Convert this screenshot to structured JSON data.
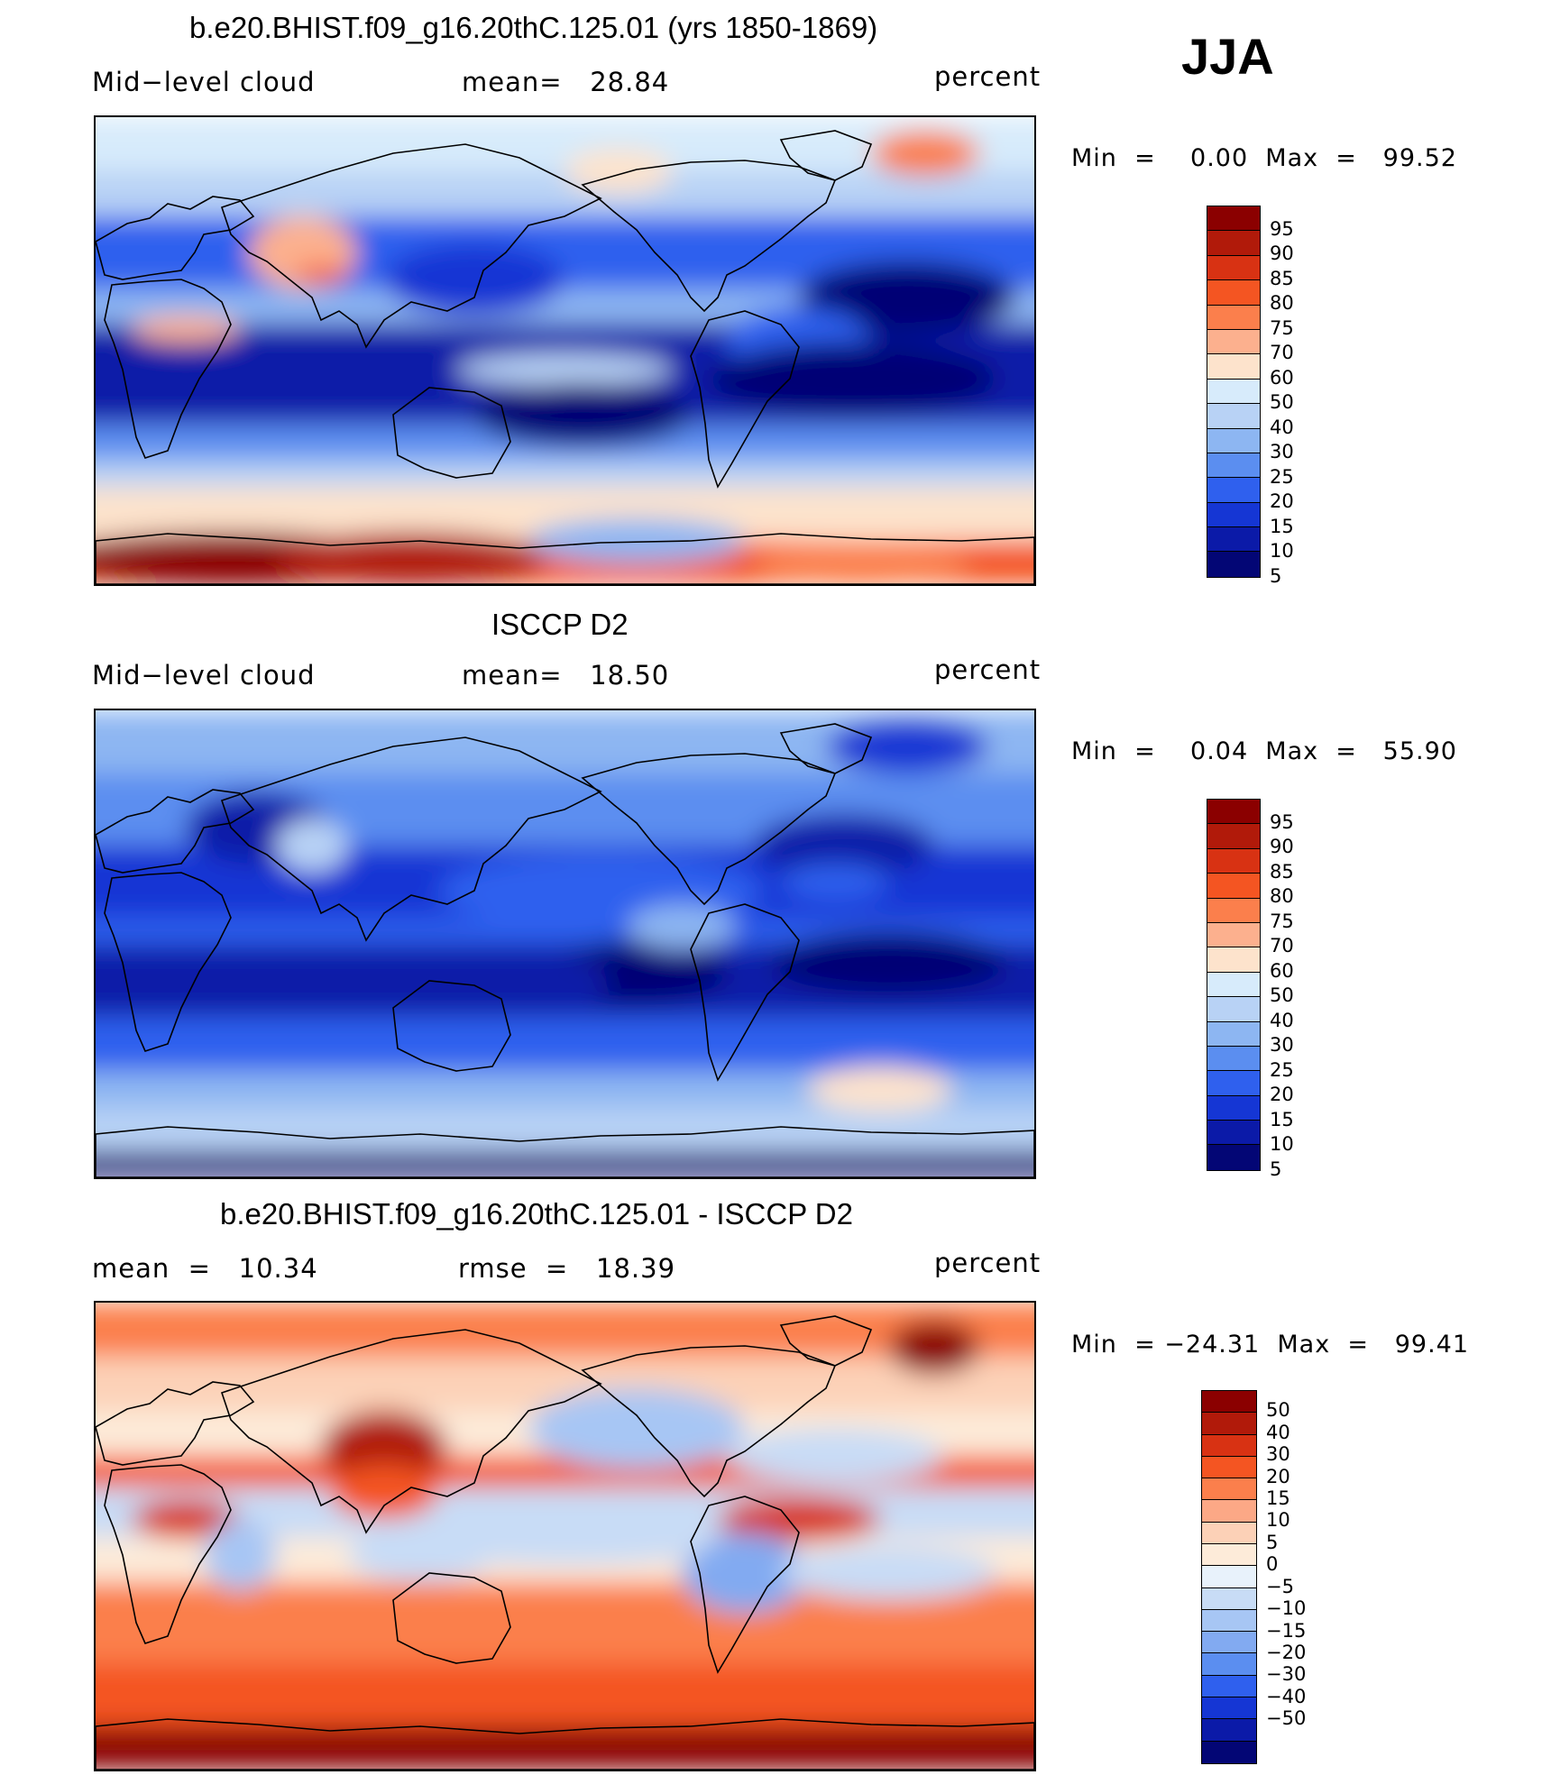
{
  "season": "JJA",
  "colors": {
    "abs_scale": [
      "#8b0000",
      "#b11a0a",
      "#d83213",
      "#f45522",
      "#fb7f4c",
      "#fcb08e",
      "#fde3cc",
      "#d7ebfb",
      "#b8d2f5",
      "#8db6f2",
      "#5b8ef0",
      "#2f60ee",
      "#1536d4",
      "#0b1aa8",
      "#030675"
    ],
    "diff_scale": [
      "#8b0000",
      "#b11a0a",
      "#d83213",
      "#f45522",
      "#fb7f4c",
      "#fca886",
      "#fcd1b7",
      "#fdebd9",
      "#e8f2fb",
      "#c8dcf6",
      "#a7c6f4",
      "#82aaf1",
      "#5b8ef0",
      "#2f60ee",
      "#1536d4",
      "#0b1aa8",
      "#030675"
    ]
  },
  "panels": [
    {
      "title": "b.e20.BHIST.f09_g16.20thC.125.01 (yrs 1850-1869)",
      "left_label": "Mid−level cloud",
      "mean_text": "mean=   28.84",
      "units": "percent",
      "min_max": "Min  =    0.00  Max  =   99.52",
      "colorbar_labels": [
        "95",
        "90",
        "85",
        "80",
        "75",
        "70",
        "60",
        "50",
        "40",
        "30",
        "25",
        "20",
        "15",
        "10",
        "5"
      ]
    },
    {
      "title": "ISCCP D2",
      "left_label": "Mid−level cloud",
      "mean_text": "mean=   18.50",
      "units": "percent",
      "min_max": "Min  =    0.04  Max  =   55.90",
      "colorbar_labels": [
        "95",
        "90",
        "85",
        "80",
        "75",
        "70",
        "60",
        "50",
        "40",
        "30",
        "25",
        "20",
        "15",
        "10",
        "5"
      ]
    },
    {
      "title": "b.e20.BHIST.f09_g16.20thC.125.01 - ISCCP D2",
      "left_label": "mean  =   10.34",
      "mean_text": "rmse  =   18.39",
      "units": "percent",
      "min_max": "Min  = −24.31  Max  =   99.41",
      "colorbar_labels": [
        "50",
        "40",
        "30",
        "20",
        "15",
        "10",
        "5",
        "0",
        "−5",
        "−10",
        "−15",
        "−20",
        "−30",
        "−40",
        "−50"
      ]
    }
  ]
}
